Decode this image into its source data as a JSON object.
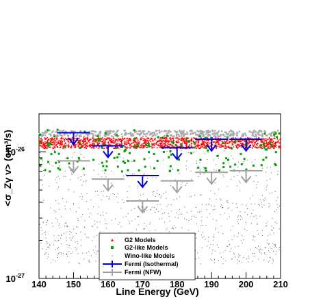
{
  "chart_data": {
    "type": "scatter",
    "xlabel": "Line Energy (GeV)",
    "ylabel": "<σ_Zγ v> (cm³/s)",
    "xlim": [
      140,
      210
    ],
    "ylim": [
      1e-27,
      2e-26
    ],
    "yscale": "log",
    "x_ticks": [
      "140",
      "150",
      "160",
      "170",
      "180",
      "190",
      "200",
      "210"
    ],
    "y_ticks": [
      {
        "value": 1e-26,
        "base": "10",
        "exp": "-26"
      },
      {
        "value": 1e-27,
        "base": "10",
        "exp": "-27"
      }
    ],
    "legend_position": "bottom-center",
    "series": [
      {
        "name": "G2 Models",
        "color": "#ff0000",
        "marker": "triangle",
        "band": {
          "y_low": 1.07e-26,
          "y_high": 1.3e-26
        }
      },
      {
        "name": "G2-like Models",
        "color": "#00a000",
        "marker": "square",
        "band": {
          "y_low": 7e-27,
          "y_high": 1.5e-26
        }
      },
      {
        "name": "Wino-like Models",
        "color": "#555555",
        "marker": "dot",
        "band": {
          "y_low": 1.3e-27,
          "y_high": 1.2e-26
        },
        "upper_band_color": "#aaaaaa",
        "upper_band": {
          "y_low": 1.32e-26,
          "y_high": 1.48e-26
        }
      },
      {
        "name": "Fermi (Isothermal)",
        "color": "#0000dd",
        "marker": "upper-limit",
        "points": [
          {
            "x": 150,
            "y": 1.42e-26
          },
          {
            "x": 160,
            "y": 1.12e-26
          },
          {
            "x": 170,
            "y": 6.5e-27
          },
          {
            "x": 180,
            "y": 1.08e-26
          },
          {
            "x": 190,
            "y": 1.26e-26
          },
          {
            "x": 200,
            "y": 1.26e-26
          }
        ]
      },
      {
        "name": "Fermi (NFW)",
        "color": "#a0a0a0",
        "marker": "upper-limit",
        "points": [
          {
            "x": 150,
            "y": 8.5e-27
          },
          {
            "x": 160,
            "y": 6.1e-27
          },
          {
            "x": 170,
            "y": 4.1e-27
          },
          {
            "x": 180,
            "y": 5.9e-27
          },
          {
            "x": 190,
            "y": 6.9e-27
          },
          {
            "x": 200,
            "y": 7.1e-27
          }
        ]
      }
    ]
  }
}
